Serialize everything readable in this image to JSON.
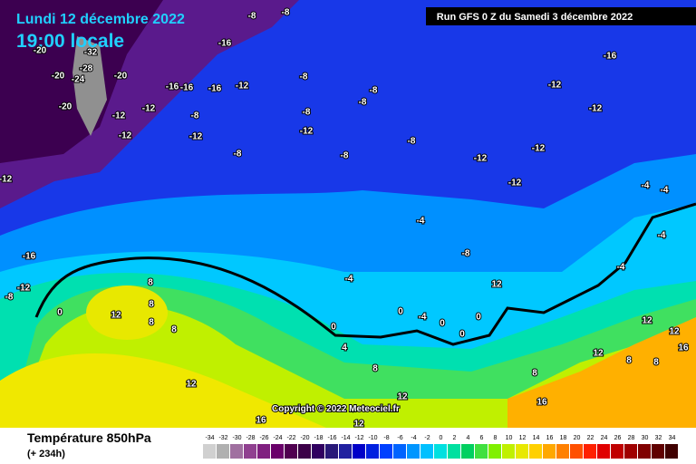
{
  "header": {
    "date": "Lundi 12 décembre 2022",
    "time": "19:00 locale",
    "run": "Run GFS 0 Z du Samedi 3 décembre 2022"
  },
  "copyright": "Copyright © 2022 Meteociel.fr",
  "legend": {
    "title": "Température 850hPa",
    "subtitle": "(+ 234h)",
    "ticks": [
      -34,
      -32,
      -30,
      -28,
      -26,
      -24,
      -22,
      -20,
      -18,
      -16,
      -14,
      -12,
      -10,
      -8,
      -6,
      -4,
      -2,
      0,
      2,
      4,
      6,
      8,
      10,
      12,
      14,
      16,
      18,
      20,
      22,
      24,
      26,
      28,
      30,
      32,
      34
    ],
    "colors": [
      "#d0d0d0",
      "#b0b0b0",
      "#a070a0",
      "#904090",
      "#802080",
      "#6a006a",
      "#500050",
      "#3c0048",
      "#300060",
      "#281878",
      "#2020a0",
      "#0000c8",
      "#0020e0",
      "#0040ff",
      "#0064ff",
      "#0096ff",
      "#00c0ff",
      "#00e0e0",
      "#00e0a0",
      "#00d060",
      "#40e040",
      "#80f000",
      "#c0f000",
      "#e8e800",
      "#ffd000",
      "#ffa800",
      "#ff8000",
      "#ff5000",
      "#ff2000",
      "#e00000",
      "#c00000",
      "#a00000",
      "#800000",
      "#600000",
      "#400000"
    ]
  },
  "map_labels": [
    "-20",
    "-32",
    "-28",
    "-24",
    "-20",
    "-20",
    "-20",
    "-16",
    "-8",
    "-8",
    "-16",
    "-16",
    "-16",
    "-16",
    "-12",
    "-12",
    "-12",
    "-12",
    "-8",
    "-8",
    "-8",
    "-12",
    "-12",
    "-8",
    "-12",
    "-8",
    "-12",
    "-8",
    "-8",
    "-8",
    "-12",
    "-12",
    "-12",
    "-4",
    "-4",
    "-4",
    "-8",
    "-4",
    "-4",
    "-4",
    "-12",
    "-16",
    "-12",
    "-8",
    "0",
    "8",
    "12",
    "8",
    "8",
    "8",
    "0",
    "4",
    "0",
    "-4",
    "0",
    "0",
    "0",
    "12",
    "12",
    "8",
    "8",
    "12",
    "12",
    "16",
    "8",
    "8",
    "12",
    "12",
    "16",
    "16",
    "12"
  ]
}
